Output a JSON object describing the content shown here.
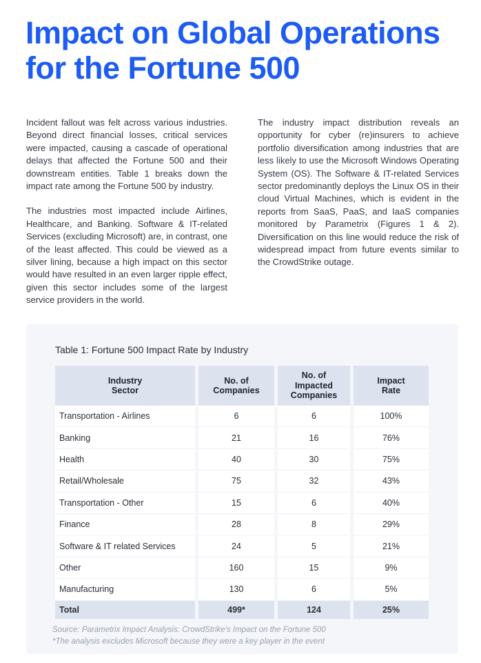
{
  "title": "Impact on Global Operations for the Fortune 500",
  "left_column": [
    "Incident fallout was felt across various industries. Beyond direct financial losses, critical services were impacted, causing a cascade of operational delays that affected the Fortune 500 and their downstream entities. Table 1 breaks down the impact rate among the Fortune 500 by industry.",
    "The industries most impacted include Airlines, Healthcare, and Banking. Software & IT-related Services (excluding Microsoft) are, in contrast, one of the least affected. This could be viewed as a silver lining, because a high impact on this sector would have resulted in an even larger ripple effect, given this sector includes some of the largest service providers in the world."
  ],
  "right_column": [
    "The industry impact distribution reveals an opportunity for cyber (re)insurers to achieve portfolio diversification among industries that are less likely to use the Microsoft Windows Operating System (OS). The Software & IT-related Services sector predominantly deploys the Linux OS in their cloud Virtual Machines, which is evident in the reports from SaaS, PaaS, and IaaS companies monitored by Parametrix (Figures 1 & 2). Diversification on this line would reduce the risk of widespread impact from future events similar to the CrowdStrike outage."
  ],
  "table": {
    "caption": "Table 1: Fortune 500  Impact Rate by Industry",
    "headers": [
      "Industry\nSector",
      "No. of\nCompanies",
      "No. of\nImpacted\nCompanies",
      "Impact\nRate"
    ],
    "rows": [
      [
        "Transportation - Airlines",
        "6",
        "6",
        "100%"
      ],
      [
        "Banking",
        "21",
        "16",
        "76%"
      ],
      [
        "Health",
        "40",
        "30",
        "75%"
      ],
      [
        "Retail/Wholesale",
        "75",
        "32",
        "43%"
      ],
      [
        "Transportation - Other",
        "15",
        "6",
        "40%"
      ],
      [
        "Finance",
        "28",
        "8",
        "29%"
      ],
      [
        "Software & IT related Services",
        "24",
        "5",
        "21%"
      ],
      [
        "Other",
        "160",
        "15",
        "9%"
      ],
      [
        "Manufacturing",
        "130",
        "6",
        "5%"
      ]
    ],
    "total": [
      "Total",
      "499*",
      "124",
      "25%"
    ]
  },
  "source": "Source: Parametrix Impact Analysis: CrowdStrike's Impact on the Fortune 500",
  "footnote": "*The analysis excludes Microsoft because they were a key player in the event",
  "colors": {
    "title": "#1d5cf2",
    "header_bg": "#dde3ee",
    "panel_bg": "#f4f6fa"
  }
}
